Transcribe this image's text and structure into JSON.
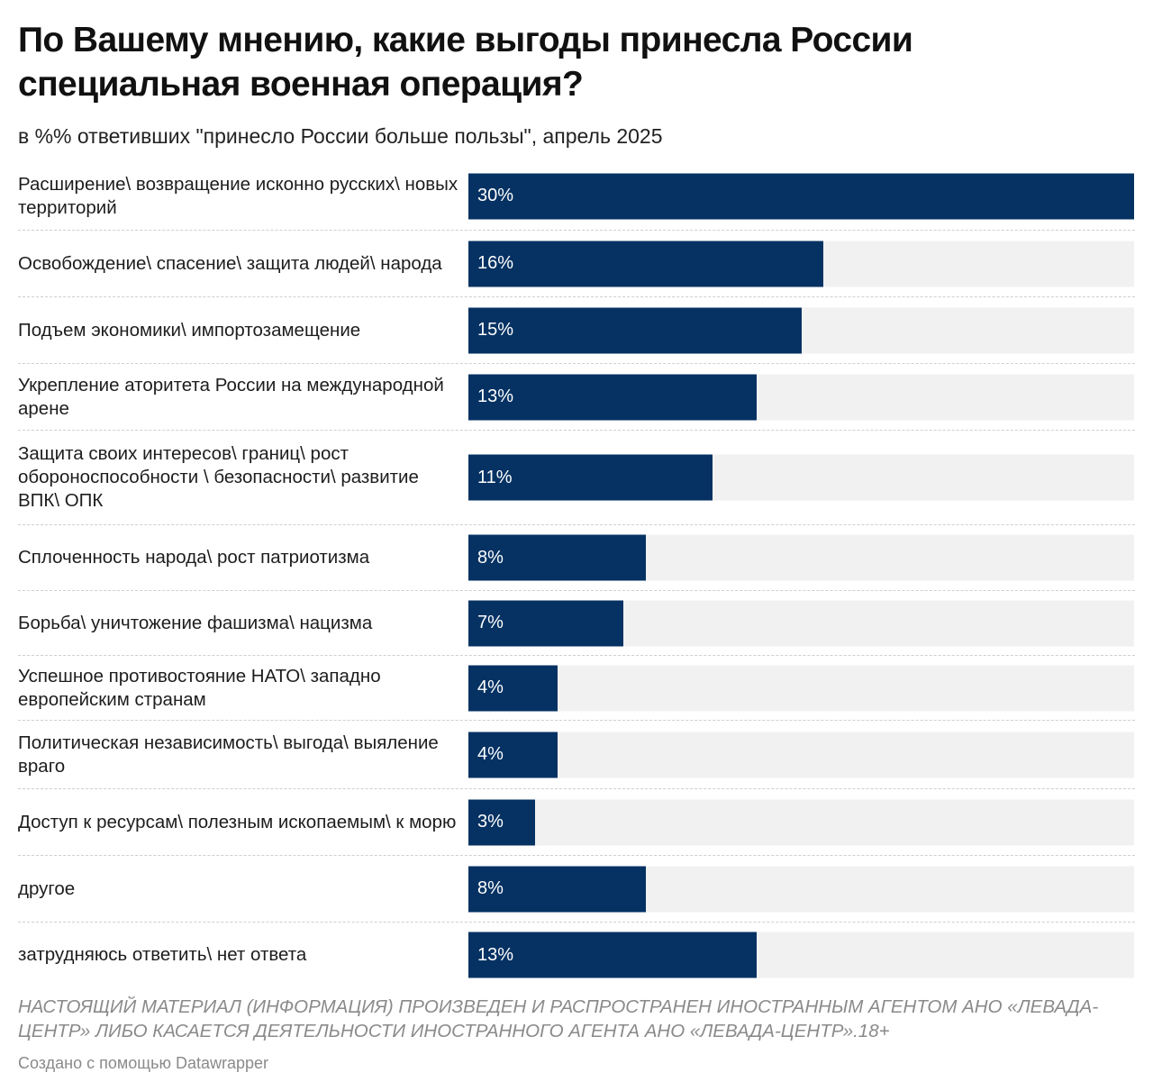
{
  "header": {
    "title": "По Вашему мнению, какие выгоды принесла России специальная военная операция?",
    "subtitle": "в %% ответивших \"принесло России больше пользы\", апрель 2025"
  },
  "footer": {
    "notice": "НАСТОЯЩИЙ МАТЕРИАЛ (ИНФОРМАЦИЯ) ПРОИЗВЕДЕН И РАСПРОСТРАНЕН ИНОСТРАННЫМ АГЕНТОМ АНО «ЛЕВАДА-ЦЕНТР» ЛИБО КАСАЕТСЯ ДЕЯТЕЛЬНОСТИ ИНОСТРАННОГО АГЕНТА АНО «ЛЕВАДА-ЦЕНТР».18+",
    "credit": "Создано с помощью Datawrapper"
  },
  "colors": {
    "bar": "#053263",
    "track": "#f1f1f1",
    "bar_text": "#ffffff"
  },
  "chart_data": {
    "type": "bar",
    "orientation": "horizontal",
    "title": "По Вашему мнению, какие выгоды принесла России специальная военная операция?",
    "subtitle": "в %% ответивших \"принесло России больше пользы\", апрель 2025",
    "xlim": [
      0,
      30
    ],
    "grid": false,
    "unit": "%",
    "categories": [
      "Расширение\\ возвращение исконно русских\\ новых территорий",
      "Освобождение\\ спасение\\ защита людей\\ народа",
      "Подъем экономики\\ импортозамещение",
      "Укрепление аторитета России на международной арене",
      "Защита своих интересов\\ границ\\ рост обороноспособности \\ безопасности\\ развитие ВПК\\ ОПК",
      "Сплоченность народа\\ рост патриотизма",
      "Борьба\\ уничтожение фашизма\\ нацизма",
      "Успешное противостояние НАТО\\ западно европейским странам",
      "Политическая независимость\\ выгода\\ выяление враго",
      "Доступ к ресурсам\\ полезным ископаемым\\ к морю",
      "другое",
      "затрудняюсь ответить\\ нет ответа"
    ],
    "values": [
      30,
      16,
      15,
      13,
      11,
      8,
      7,
      4,
      4,
      3,
      8,
      13
    ],
    "value_labels": [
      "30%",
      "16%",
      "15%",
      "13%",
      "11%",
      "8%",
      "7%",
      "4%",
      "4%",
      "3%",
      "8%",
      "13%"
    ]
  }
}
